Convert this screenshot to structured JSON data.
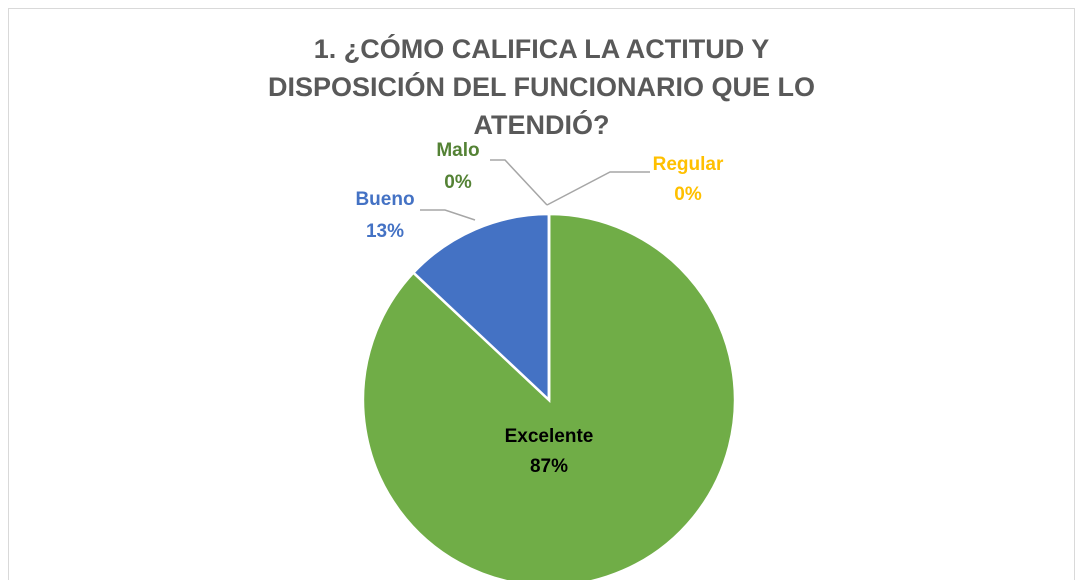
{
  "chart_data": {
    "type": "pie",
    "title": "1. ¿CÓMO CALIFICA LA ACTITUD Y DISPOSICIÓN DEL FUNCIONARIO QUE LO ATENDIÓ?",
    "categories": [
      "Excelente",
      "Bueno",
      "Malo",
      "Regular"
    ],
    "values": [
      87,
      13,
      0,
      0
    ],
    "value_labels": [
      "87%",
      "13%",
      "0%",
      "0%"
    ],
    "colors": [
      "#70ad47",
      "#4472c4",
      "#548235",
      "#ffc000"
    ],
    "label_colors": [
      "#000000",
      "#4472c4",
      "#548235",
      "#ffc000"
    ]
  }
}
